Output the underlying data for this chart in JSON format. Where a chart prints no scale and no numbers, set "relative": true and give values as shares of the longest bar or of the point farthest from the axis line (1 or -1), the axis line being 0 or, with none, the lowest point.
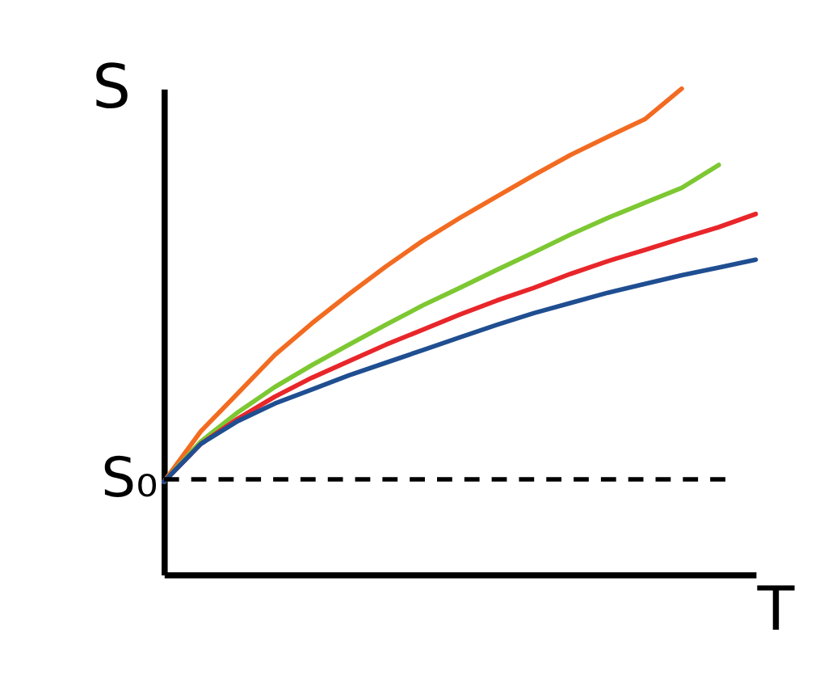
{
  "chart_data": {
    "type": "line",
    "relative": true,
    "xlabel": "T",
    "ylabel": "S",
    "grid": false,
    "line_style": "solid",
    "marker": "none",
    "categories": [
      null,
      null,
      null,
      null,
      null,
      null,
      null,
      null,
      null,
      null,
      null,
      null,
      null,
      null,
      null,
      null,
      null
    ],
    "series": [
      {
        "color": "#f26b21",
        "values": [
          0.191,
          0.295,
          0.373,
          0.452,
          0.517,
          0.577,
          0.634,
          0.687,
          0.734,
          0.778,
          0.822,
          0.864,
          0.901,
          0.937,
          1.0,
          null,
          null
        ]
      },
      {
        "color": "#7dc832",
        "values": [
          0.191,
          0.274,
          0.334,
          0.386,
          0.431,
          0.473,
          0.514,
          0.554,
          0.59,
          0.627,
          0.663,
          0.7,
          0.734,
          0.765,
          0.796,
          0.843,
          null
        ]
      },
      {
        "color": "#e8262a",
        "values": [
          0.191,
          0.269,
          0.321,
          0.366,
          0.405,
          0.439,
          0.473,
          0.504,
          0.535,
          0.564,
          0.59,
          0.619,
          0.645,
          0.668,
          0.692,
          0.715,
          0.742
        ]
      },
      {
        "color": "#1f4e91",
        "values": [
          0.191,
          0.269,
          0.316,
          0.352,
          0.381,
          0.41,
          0.436,
          0.462,
          0.488,
          0.514,
          0.538,
          0.559,
          0.58,
          0.598,
          0.616,
          0.632,
          0.648
        ]
      }
    ],
    "ref_lines": [
      {
        "axis": "y",
        "value": 0.196,
        "label": "S₀",
        "color": "#000000",
        "line_style": "dashed"
      }
    ]
  }
}
